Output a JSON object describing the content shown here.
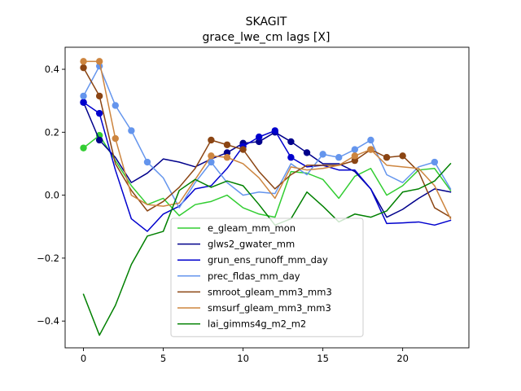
{
  "chart_data": {
    "type": "line",
    "title": "SKAGIT",
    "subtitle": "grace_lwe_cm lags [X]",
    "xlabel": "",
    "ylabel": "",
    "xlim": [
      -1.15,
      24.15
    ],
    "ylim": [
      -0.485,
      0.47
    ],
    "xticks": [
      0,
      5,
      10,
      15,
      20
    ],
    "yticks": [
      -0.4,
      -0.2,
      0.0,
      0.2,
      0.4
    ],
    "xtick_labels": [
      "0",
      "5",
      "10",
      "15",
      "20"
    ],
    "ytick_labels": [
      "−0.4",
      "−0.2",
      "0.0",
      "0.2",
      "0.4"
    ],
    "legend_position": "lower-center",
    "x": [
      0,
      1,
      2,
      3,
      4,
      5,
      6,
      7,
      8,
      9,
      10,
      11,
      12,
      13,
      14,
      15,
      16,
      17,
      18,
      19,
      20,
      21,
      22,
      23
    ],
    "series": [
      {
        "name": "e_gleam_mm_mon",
        "color": "#32cd32",
        "values": [
          0.15,
          0.19,
          0.11,
          0.03,
          -0.03,
          -0.01,
          -0.065,
          -0.03,
          -0.02,
          0.0,
          -0.04,
          -0.06,
          -0.07,
          0.075,
          0.07,
          0.05,
          -0.01,
          0.06,
          0.085,
          0.0,
          0.03,
          0.08,
          0.085,
          0.015
        ],
        "markers": [
          0,
          1
        ]
      },
      {
        "name": "glws2_gwater_mm",
        "color": "#00008b",
        "values": [
          0.295,
          0.175,
          0.12,
          0.04,
          0.07,
          0.115,
          0.105,
          0.09,
          0.115,
          0.135,
          0.165,
          0.17,
          0.2,
          0.17,
          0.135,
          0.1,
          0.1,
          0.075,
          0.02,
          -0.07,
          -0.045,
          -0.01,
          0.02,
          0.01
        ],
        "markers": [
          0,
          1,
          9,
          10,
          11,
          12,
          13,
          14
        ]
      },
      {
        "name": "grun_ens_runoff_mm_day",
        "color": "#0000cd",
        "values": [
          0.295,
          0.26,
          0.08,
          -0.075,
          -0.115,
          -0.06,
          -0.035,
          0.02,
          0.03,
          0.085,
          0.155,
          0.185,
          0.205,
          0.12,
          0.09,
          0.095,
          0.08,
          0.08,
          0.02,
          -0.09,
          -0.088,
          -0.085,
          -0.095,
          -0.08
        ],
        "markers": [
          0,
          1,
          10,
          11,
          12,
          13
        ]
      },
      {
        "name": "prec_fldas_mm_day",
        "color": "#6495ed",
        "values": [
          0.315,
          0.41,
          0.285,
          0.205,
          0.105,
          0.055,
          -0.04,
          0.04,
          0.105,
          0.04,
          0.0,
          0.01,
          0.005,
          0.1,
          0.065,
          0.13,
          0.12,
          0.145,
          0.175,
          0.065,
          0.04,
          0.09,
          0.105,
          0.02
        ],
        "markers": [
          0,
          1,
          2,
          3,
          4,
          8,
          15,
          16,
          17,
          18,
          22
        ]
      },
      {
        "name": "smroot_gleam_mm3_mm3",
        "color": "#8b4513",
        "values": [
          0.405,
          0.315,
          0.1,
          0.015,
          -0.05,
          -0.02,
          0.025,
          0.085,
          0.175,
          0.16,
          0.145,
          0.075,
          0.02,
          0.065,
          0.095,
          0.095,
          0.095,
          0.11,
          0.145,
          0.12,
          0.125,
          0.075,
          -0.04,
          -0.07
        ],
        "markers": [
          0,
          1,
          8,
          9,
          10,
          17,
          18,
          19,
          20
        ]
      },
      {
        "name": "smsurf_gleam_mm3_mm3",
        "color": "#cd853f",
        "values": [
          0.425,
          0.425,
          0.18,
          0.0,
          -0.03,
          -0.035,
          -0.025,
          0.05,
          0.125,
          0.12,
          0.1,
          0.055,
          -0.01,
          0.09,
          0.08,
          0.085,
          0.095,
          0.125,
          0.145,
          0.095,
          0.09,
          0.085,
          0.03,
          -0.075
        ],
        "markers": [
          0,
          1,
          2,
          8,
          9,
          17,
          18
        ]
      },
      {
        "name": "lai_gimms4g_m2_m2",
        "color": "#008000",
        "values": [
          -0.315,
          -0.445,
          -0.35,
          -0.22,
          -0.13,
          -0.115,
          0.015,
          0.05,
          0.025,
          0.045,
          0.03,
          -0.03,
          -0.095,
          -0.075,
          0.01,
          -0.035,
          -0.085,
          -0.06,
          -0.07,
          -0.05,
          0.01,
          0.02,
          0.045,
          0.1
        ],
        "markers": []
      }
    ]
  }
}
